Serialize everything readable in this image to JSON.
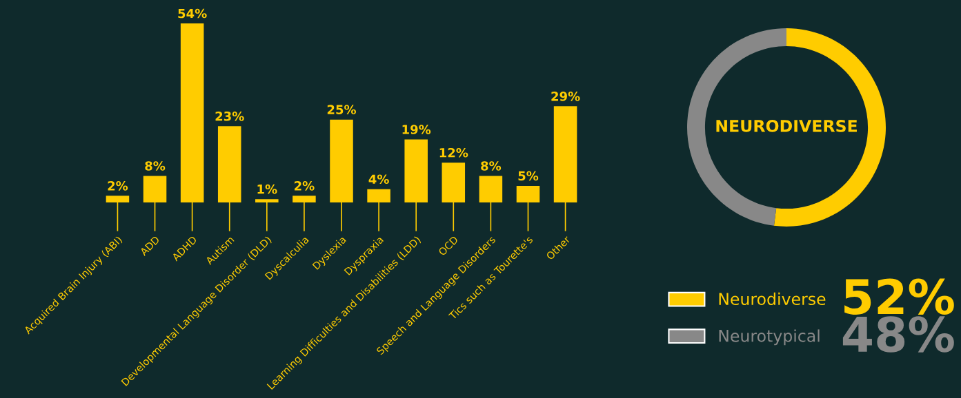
{
  "chart_data": [
    {
      "type": "bar",
      "categories": [
        "Acquired Brain Injury (ABI)",
        "ADD",
        "ADHD",
        "Autism",
        "Developmental Language Disorder (DLD)",
        "Dyscalculia",
        "Dyslexia",
        "Dyspraxia",
        "Learning Difficulties and Disabilities (LDD)",
        "OCD",
        "Speech and Language Disorders",
        "Tics such as Tourette's",
        "Other"
      ],
      "values": [
        2,
        8,
        54,
        23,
        1,
        2,
        25,
        4,
        19,
        12,
        8,
        5,
        29
      ],
      "value_labels": [
        "2%",
        "8%",
        "54%",
        "23%",
        "1%",
        "2%",
        "25%",
        "4%",
        "19%",
        "12%",
        "8%",
        "5%",
        "29%"
      ],
      "color": "#ffcc00",
      "tick_labels": "x",
      "grid": false
    },
    {
      "type": "donut",
      "categories": [
        "Neurodiverse",
        "Neurotypical"
      ],
      "values": [
        52,
        48
      ],
      "colors": [
        "#ffcc00",
        "#888888"
      ],
      "value_labels": [
        "52%",
        "48%"
      ],
      "annotations": [
        "NEURODIVERSE"
      ],
      "legend": "bottom"
    }
  ]
}
